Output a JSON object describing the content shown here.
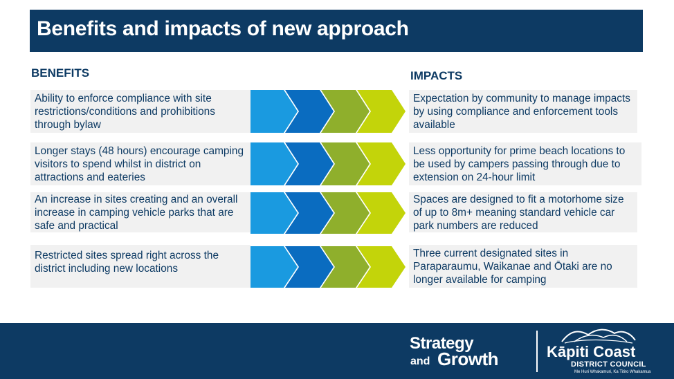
{
  "title": "Benefits and impacts of new approach",
  "benefits_heading": "BENEFITS",
  "impacts_heading": "IMPACTS",
  "rows": [
    {
      "benefit": "Ability to enforce compliance with site restrictions/conditions and prohibitions through bylaw",
      "impact": "Expectation by community to manage impacts by using compliance and enforcement tools available"
    },
    {
      "benefit": "Longer stays (48 hours) encourage camping visitors to spend whilst in district on attractions and eateries",
      "impact": "Less opportunity for prime beach locations to be used by campers passing through due to extension on 24-hour limit"
    },
    {
      "benefit": "An increase in sites creating and an overall increase in camping vehicle parks that are safe and practical",
      "impact": "Spaces are designed to fit a motorhome size of up to 8m+ meaning standard vehicle car park numbers are reduced"
    },
    {
      "benefit": "Restricted sites spread right across the district including new locations",
      "impact": "Three current designated sites in Paraparaumu, Waikanae and Ōtaki are no longer available for camping"
    }
  ],
  "chevron_colors": [
    "#1a9ae0",
    "#0a6cc0",
    "#8faf2c",
    "#c3d40a"
  ],
  "footer": {
    "brand_line1": "Strategy",
    "brand_and": "and",
    "brand_growth": "Growth",
    "council_name": "Kāpiti Coast",
    "council_sub": "DISTRICT COUNCIL",
    "council_tagline": "Me Huri Whakamuri, Ka Titiro Whakamua"
  }
}
